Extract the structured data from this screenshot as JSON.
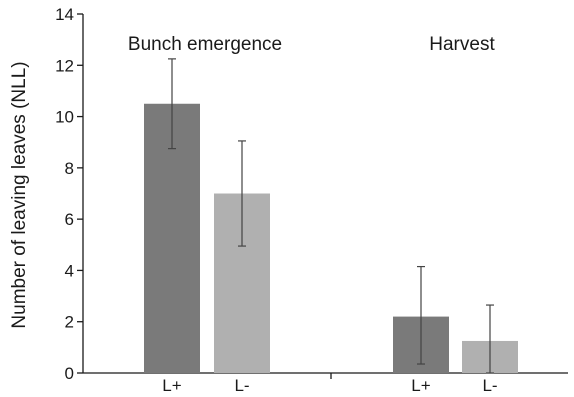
{
  "chart_data": {
    "type": "bar",
    "ylabel": "Number of leaving leaves (NLL)",
    "xlabel": "",
    "ylim": [
      0,
      14
    ],
    "yticks": [
      0,
      2,
      4,
      6,
      8,
      10,
      12,
      14
    ],
    "grid": false,
    "groups": [
      {
        "label": "Bunch emergence",
        "bars": [
          {
            "category": "L+",
            "value": 10.5,
            "error_low": 8.75,
            "error_high": 12.25,
            "color": "#7a7a7a"
          },
          {
            "category": "L-",
            "value": 7.0,
            "error_low": 4.95,
            "error_high": 9.05,
            "color": "#b0b0b0"
          }
        ]
      },
      {
        "label": "Harvest",
        "bars": [
          {
            "category": "L+",
            "value": 2.2,
            "error_low": 0.35,
            "error_high": 4.15,
            "color": "#7a7a7a"
          },
          {
            "category": "L-",
            "value": 1.25,
            "error_low": 0.0,
            "error_high": 2.65,
            "color": "#b0b0b0"
          }
        ]
      }
    ]
  }
}
